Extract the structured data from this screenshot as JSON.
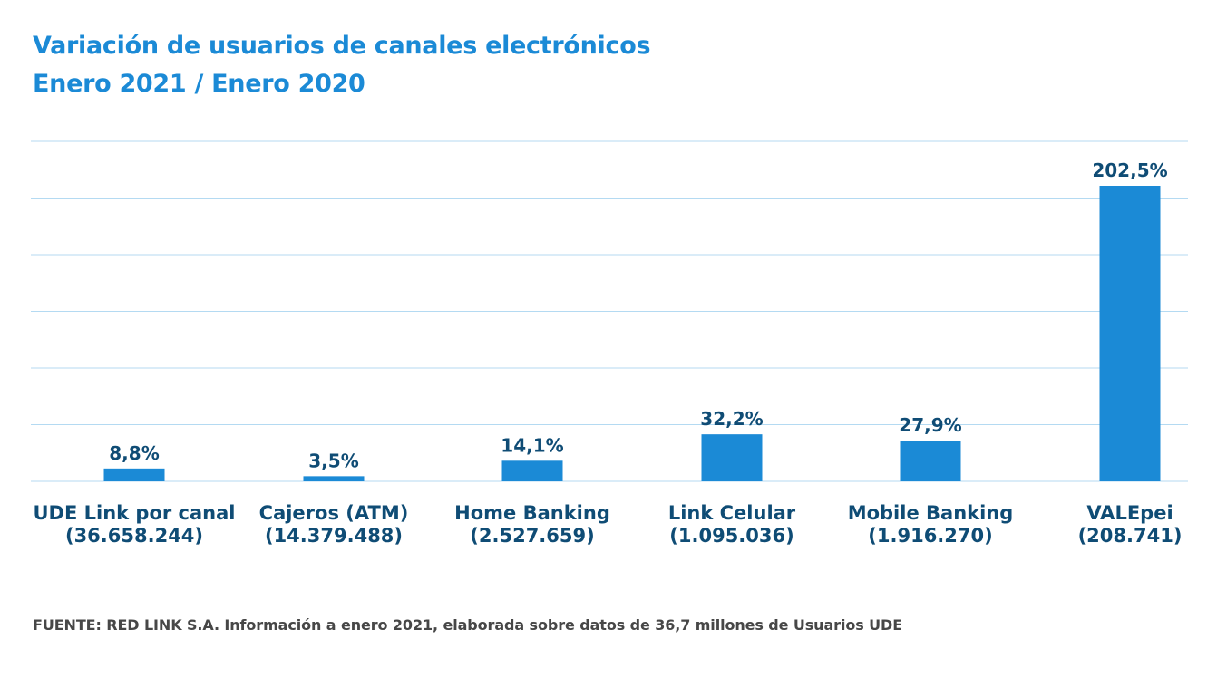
{
  "header": {
    "title_line1": "Variación de usuarios de canales electrónicos",
    "title_line2": "Enero 2021 / Enero 2020"
  },
  "chart_data": {
    "type": "bar",
    "title": "Variación de usuarios de canales electrónicos Enero 2021 / Enero 2020",
    "categories": [
      "UDE Link por canal",
      "Cajeros (ATM)",
      "Home Banking",
      "Link Celular",
      "Mobile Banking",
      "VALEpei"
    ],
    "category_counts": [
      "(36.658.244)",
      "(14.379.488)",
      "(2.527.659)",
      "(1.095.036)",
      "(1.916.270)",
      "(208.741)"
    ],
    "values": [
      8.8,
      3.5,
      14.1,
      32.2,
      27.9,
      202.5
    ],
    "value_labels": [
      "8,8%",
      "3,5%",
      "14,1%",
      "32,2%",
      "27,9%",
      "202,5%"
    ],
    "xlabel": "",
    "ylabel": "",
    "ylim": [
      0,
      250
    ],
    "grid": true,
    "gridline_count": 7,
    "colors": {
      "bar": "#1b8ad6",
      "grid": "#b4daf2",
      "label": "#0f4c75"
    }
  },
  "footer": {
    "source": "FUENTE: RED LINK S.A. Información a enero 2021, elaborada sobre datos de 36,7 millones de Usuarios UDE"
  }
}
